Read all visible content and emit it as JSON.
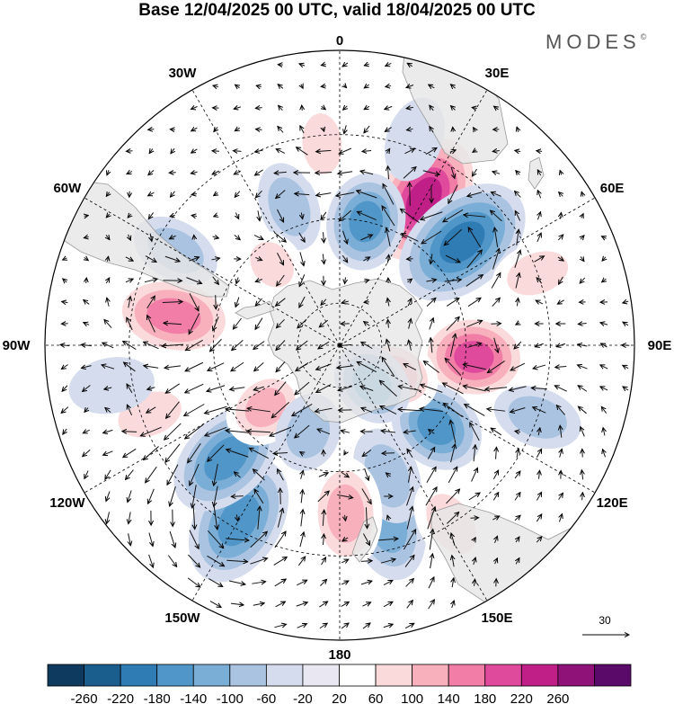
{
  "title": "Base 12/04/2025 00 UTC, valid 18/04/2025 00 UTC",
  "brand": "MODES",
  "brand_mark": "©",
  "longitude_labels": [
    {
      "text": "0",
      "lon": 0
    },
    {
      "text": "30E",
      "lon": 30
    },
    {
      "text": "60E",
      "lon": 60
    },
    {
      "text": "90E",
      "lon": 90
    },
    {
      "text": "120E",
      "lon": 120
    },
    {
      "text": "150E",
      "lon": 150
    },
    {
      "text": "180",
      "lon": 180
    },
    {
      "text": "150W",
      "lon": -150
    },
    {
      "text": "120W",
      "lon": -120
    },
    {
      "text": "90W",
      "lon": -90
    },
    {
      "text": "60W",
      "lon": -60
    },
    {
      "text": "30W",
      "lon": -30
    }
  ],
  "reference_vector": {
    "value": "30"
  },
  "colorbar": {
    "ticks": [
      "-260",
      "-220",
      "-180",
      "-140",
      "-100",
      "-60",
      "-20",
      "20",
      "60",
      "100",
      "140",
      "180",
      "220",
      "260"
    ],
    "colors": [
      "#0d3a5e",
      "#1a5e8e",
      "#2f7bb4",
      "#5196c8",
      "#7aaed6",
      "#a9c3e1",
      "#d4dcee",
      "#e9e8f2",
      "#ffffff",
      "#fbdadb",
      "#f7b0bc",
      "#f27ea8",
      "#e04a9c",
      "#c01f88",
      "#8e1278",
      "#5a0a68"
    ]
  },
  "colors": {
    "land": "#e6e6e6",
    "coast": "#9a9a9a",
    "grid": "#000000"
  },
  "anomaly_centers": [
    {
      "lon": 30,
      "lat": -50,
      "value": 220
    },
    {
      "lon": 50,
      "lat": -52,
      "value": -200
    },
    {
      "lon": 95,
      "lat": -58,
      "value": 180
    },
    {
      "lon": 12,
      "lat": -60,
      "value": -140
    },
    {
      "lon": -80,
      "lat": -50,
      "value": 160
    },
    {
      "lon": -150,
      "lat": -42,
      "value": -170
    },
    {
      "lon": -135,
      "lat": -52,
      "value": -150
    },
    {
      "lon": 130,
      "lat": -60,
      "value": -140
    },
    {
      "lon": 165,
      "lat": -46,
      "value": -120
    },
    {
      "lon": 160,
      "lat": -57,
      "value": -80
    },
    {
      "lon": 178,
      "lat": -50,
      "value": 120
    },
    {
      "lon": 118,
      "lat": -75,
      "value": 110
    },
    {
      "lon": -130,
      "lat": -67,
      "value": 100
    },
    {
      "lon": -160,
      "lat": -68,
      "value": -80
    },
    {
      "lon": 140,
      "lat": -78,
      "value": -100
    },
    {
      "lon": 148,
      "lat": -40,
      "value": 80
    },
    {
      "lon": -110,
      "lat": -42,
      "value": 80
    },
    {
      "lon": 70,
      "lat": -40,
      "value": 70
    },
    {
      "lon": -20,
      "lat": -55,
      "value": -60
    },
    {
      "lon": -40,
      "lat": -65,
      "value": 60
    },
    {
      "lon": -5,
      "lat": -42,
      "value": 60
    },
    {
      "lon": -60,
      "lat": -45,
      "value": -60
    },
    {
      "lon": -100,
      "lat": -35,
      "value": -50
    },
    {
      "lon": 110,
      "lat": -40,
      "value": -60
    },
    {
      "lon": 20,
      "lat": -38,
      "value": -50
    }
  ]
}
